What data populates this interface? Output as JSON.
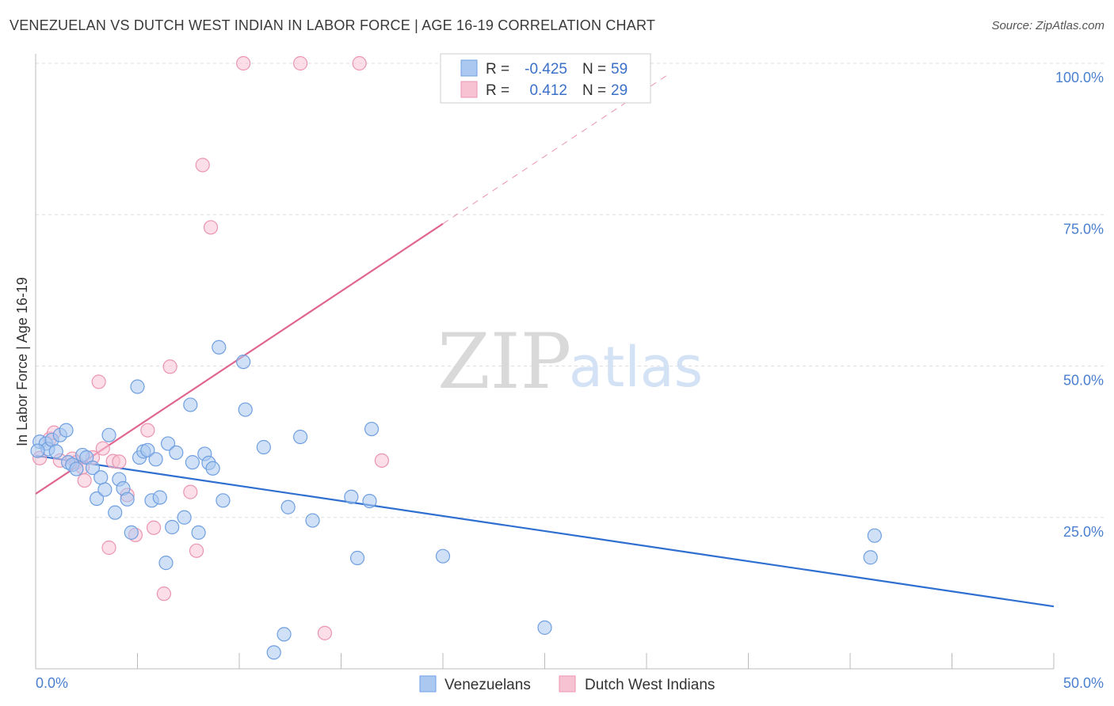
{
  "title": "VENEZUELAN VS DUTCH WEST INDIAN IN LABOR FORCE | AGE 16-19 CORRELATION CHART",
  "source": "Source: ZipAtlas.com",
  "watermark": {
    "zip": "ZIP",
    "atlas": "atlas"
  },
  "legend": {
    "rows": [
      {
        "r_label": "R =",
        "r_value": "-0.425",
        "n_label": "N =",
        "n_value": "59"
      },
      {
        "r_label": "R =",
        "r_value": "0.412",
        "n_label": "N =",
        "n_value": "29"
      }
    ]
  },
  "bottom_legend": [
    "Venezuelans",
    "Dutch West Indians"
  ],
  "colors": {
    "blue_fill": "#aac8f0",
    "blue_stroke": "#6f9fe0",
    "blue_line": "#2f6fd0",
    "pink_fill": "#f7c3d3",
    "pink_stroke": "#eb95b0",
    "pink_line": "#e06690",
    "tick_label": "#4a7fd0",
    "grid": "#dddddd"
  },
  "chart_data": {
    "type": "scatter",
    "title": "VENEZUELAN VS DUTCH WEST INDIAN IN LABOR FORCE | AGE 16-19 CORRELATION CHART",
    "xlabel": "",
    "ylabel": "In Labor Force | Age 16-19",
    "xlim": [
      0,
      50
    ],
    "ylim": [
      0,
      100
    ],
    "x_tick_labels": [
      "0.0%",
      "50.0%"
    ],
    "y_ticks": [
      25,
      50,
      75,
      100
    ],
    "y_tick_labels": [
      "25.0%",
      "50.0%",
      "75.0%",
      "100.0%"
    ],
    "grid": true,
    "legend_position": "top-center",
    "series": [
      {
        "name": "Venezuelans",
        "points": [
          [
            0.2,
            37.5
          ],
          [
            0.5,
            37.2
          ],
          [
            0.6,
            36.3
          ],
          [
            0.8,
            37.8
          ],
          [
            1.0,
            35.9
          ],
          [
            1.2,
            38.6
          ],
          [
            1.5,
            39.4
          ],
          [
            1.6,
            34.1
          ],
          [
            1.8,
            33.7
          ],
          [
            2.0,
            33.0
          ],
          [
            2.3,
            35.3
          ],
          [
            2.5,
            34.9
          ],
          [
            2.8,
            33.2
          ],
          [
            3.0,
            28.1
          ],
          [
            3.2,
            31.6
          ],
          [
            3.4,
            29.6
          ],
          [
            3.6,
            38.6
          ],
          [
            3.9,
            25.8
          ],
          [
            4.1,
            31.3
          ],
          [
            4.3,
            29.8
          ],
          [
            4.5,
            28.0
          ],
          [
            4.7,
            22.5
          ],
          [
            5.0,
            46.6
          ],
          [
            5.1,
            34.9
          ],
          [
            5.3,
            35.9
          ],
          [
            5.5,
            36.1
          ],
          [
            5.7,
            27.8
          ],
          [
            5.9,
            34.6
          ],
          [
            6.1,
            28.3
          ],
          [
            6.4,
            17.5
          ],
          [
            6.5,
            37.2
          ],
          [
            6.7,
            23.4
          ],
          [
            6.9,
            35.7
          ],
          [
            7.3,
            25.0
          ],
          [
            7.6,
            43.6
          ],
          [
            7.7,
            34.1
          ],
          [
            8.0,
            22.5
          ],
          [
            8.3,
            35.5
          ],
          [
            8.5,
            34.0
          ],
          [
            8.7,
            33.1
          ],
          [
            9.0,
            53.1
          ],
          [
            9.2,
            27.8
          ],
          [
            10.2,
            50.7
          ],
          [
            10.3,
            42.8
          ],
          [
            11.2,
            36.6
          ],
          [
            11.7,
            2.7
          ],
          [
            12.2,
            5.7
          ],
          [
            12.4,
            26.7
          ],
          [
            13.0,
            38.3
          ],
          [
            13.6,
            24.5
          ],
          [
            15.5,
            28.4
          ],
          [
            15.8,
            18.3
          ],
          [
            16.4,
            27.7
          ],
          [
            16.5,
            39.6
          ],
          [
            20.0,
            18.6
          ],
          [
            25.0,
            6.8
          ],
          [
            41.0,
            18.4
          ],
          [
            41.2,
            22.0
          ],
          [
            0.1,
            36.0
          ]
        ]
      },
      {
        "name": "Dutch West Indians",
        "points": [
          [
            0.2,
            34.8
          ],
          [
            0.7,
            38.0
          ],
          [
            0.9,
            39.0
          ],
          [
            1.2,
            34.4
          ],
          [
            1.8,
            34.7
          ],
          [
            2.0,
            34.1
          ],
          [
            2.3,
            33.3
          ],
          [
            2.4,
            31.1
          ],
          [
            2.8,
            34.9
          ],
          [
            3.1,
            47.4
          ],
          [
            3.3,
            36.4
          ],
          [
            3.6,
            20.0
          ],
          [
            3.8,
            34.3
          ],
          [
            4.1,
            34.2
          ],
          [
            4.5,
            28.7
          ],
          [
            4.9,
            22.1
          ],
          [
            5.5,
            39.4
          ],
          [
            5.8,
            23.3
          ],
          [
            6.3,
            12.4
          ],
          [
            6.6,
            49.9
          ],
          [
            7.6,
            29.2
          ],
          [
            7.9,
            19.5
          ],
          [
            8.2,
            83.2
          ],
          [
            8.6,
            72.9
          ],
          [
            10.2,
            100.0
          ],
          [
            13.0,
            100.0
          ],
          [
            14.2,
            5.9
          ],
          [
            15.9,
            100.0
          ],
          [
            17.0,
            34.4
          ]
        ]
      }
    ],
    "trend_lines": [
      {
        "series": "Venezuelans",
        "x": [
          0,
          50
        ],
        "y": [
          35.2,
          10.3
        ],
        "style": "solid"
      },
      {
        "series": "Dutch West Indians",
        "x": [
          0,
          20.0
        ],
        "y": [
          28.9,
          73.5
        ],
        "style": "solid"
      },
      {
        "series": "Dutch West Indians",
        "x": [
          20.0,
          31.0
        ],
        "y": [
          73.5,
          98.0
        ],
        "style": "dashed"
      }
    ]
  }
}
